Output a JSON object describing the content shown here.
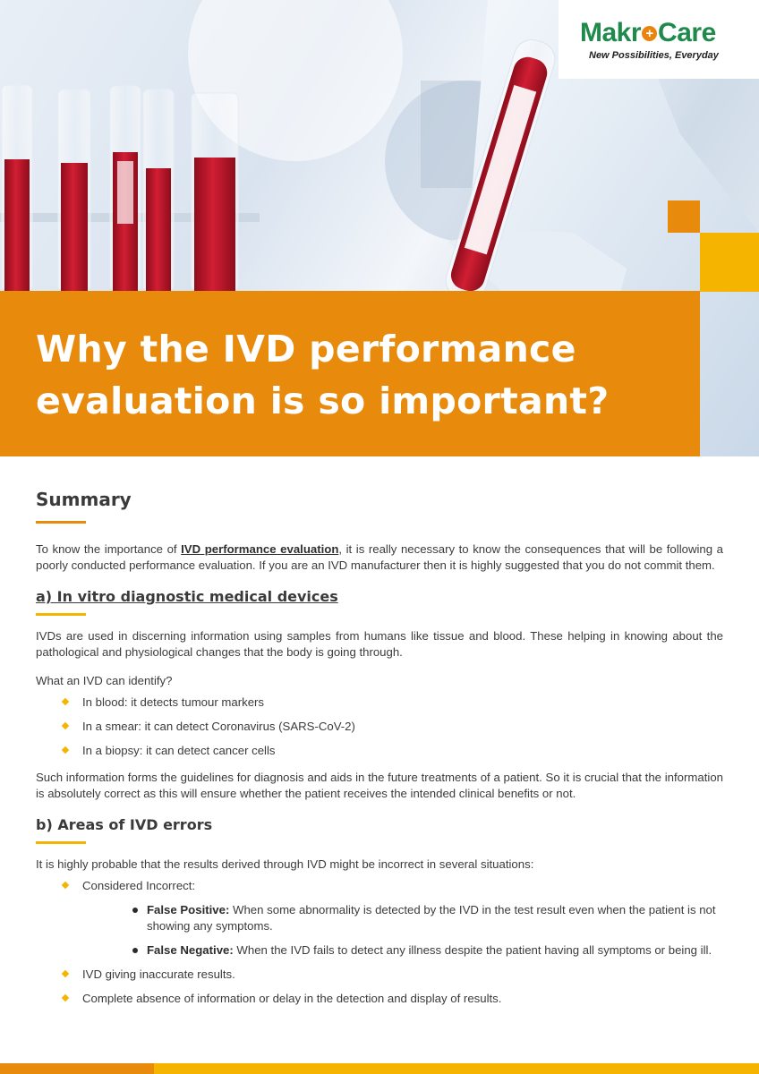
{
  "brand": {
    "logo_word_left": "Makr",
    "logo_plus": "+",
    "logo_word_right": "Care",
    "tagline": "New Possibilities, Everyday"
  },
  "hero": {
    "title_line1": "Why the IVD performance",
    "title_line2": "evaluation is so important?"
  },
  "summary": {
    "heading": "Summary",
    "intro_pre": "To know the importance of ",
    "intro_link": "IVD performance evaluation",
    "intro_post": ", it is really necessary to know the consequences that will be following a poorly conducted performance evaluation. If you are an IVD manufacturer then it is highly suggested that you do not commit them."
  },
  "section_a": {
    "heading": "a) In vitro diagnostic medical devices",
    "para1": "IVDs are used in discerning information using samples from humans like tissue and blood. These helping in knowing about the pathological and physiological changes that the body is going through.",
    "question": "What an IVD can identify?",
    "items": [
      "In blood: it detects tumour markers",
      "In a smear: it can detect Coronavirus (SARS-CoV-2)",
      "In a biopsy: it can detect cancer cells"
    ],
    "para2": "Such information forms the guidelines for diagnosis and aids in the future treatments of a patient. So it is crucial that the information is absolutely correct as this will ensure whether the patient receives the intended clinical benefits or not."
  },
  "section_b": {
    "heading": "b) Areas of IVD errors",
    "intro": "It is highly probable that the results derived through IVD might be incorrect in several situations:",
    "item1": "Considered Incorrect:",
    "sub": [
      {
        "term": "False Positive:",
        "text": " When some abnormality is detected by the IVD in the test result even when the patient is not showing any symptoms."
      },
      {
        "term": "False Negative:",
        "text": " When the IVD fails to detect any illness despite the patient having all symptoms or being ill."
      }
    ],
    "item2": "IVD giving inaccurate results.",
    "item3": "Complete absence of information or delay in the detection and display of results."
  },
  "colors": {
    "orange": "#e88a0c",
    "yellow": "#f4b400",
    "logo_green": "#1f8a4c",
    "blood_red": "#c0162a"
  }
}
